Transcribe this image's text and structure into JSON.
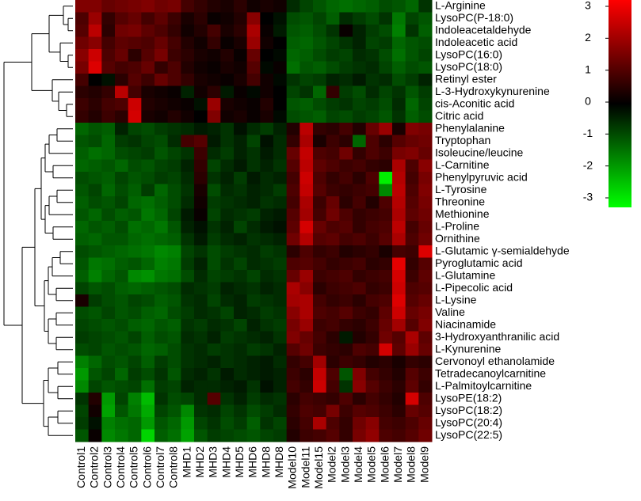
{
  "chart_data": {
    "type": "heatmap",
    "columns": [
      "Control1",
      "Control2",
      "Control3",
      "Control4",
      "Control5",
      "Control6",
      "Control7",
      "Control8",
      "MHD1",
      "MHD2",
      "MHD3",
      "MHD4",
      "MHD5",
      "MHD6",
      "MHD8",
      "MHD8",
      "Model10",
      "Model11",
      "Model15",
      "Model2",
      "Model3",
      "Model4",
      "Model5",
      "Model6",
      "Model7",
      "Model8",
      "Model9"
    ],
    "rows": [
      "L-Arginine",
      "LysoPC(P-18:0)",
      "Indoleacetaldehyde",
      "Indoleacetic acid",
      "LysoPC(16:0)",
      "LysoPC(18:0)",
      "Retinyl ester",
      "L-3-Hydroxykynurenine",
      "cis-Aconitic acid",
      "Citric acid",
      "Phenylalanine",
      "Tryptophan",
      "Isoleucine/leucine",
      "L-Carnitine",
      "Phenylpyruvic acid",
      "L-Tyrosine",
      "Threonine",
      "Methionine",
      "L-Proline",
      "Ornithine",
      "L-Glutamic γ-semialdehyde",
      "Pyroglutamic acid",
      "L-Glutamine",
      "L-Pipecolic acid",
      "L-Lysine",
      "Valine",
      "Niacinamide",
      "3-Hydroxyanthranilic acid",
      "L-Kynurenine",
      "Cervonoyl ethanolamide",
      "Tetradecanoylcarnitine",
      "L-Palmitoylcarnitine",
      "LysoPE(18:2)",
      "LysoPC(18:2)",
      "LysoPC(20:4)",
      "LysoPC(22:5)"
    ],
    "values": [
      [
        1.5,
        1.5,
        1.2,
        1.3,
        1.4,
        1.5,
        1.3,
        1.4,
        0.8,
        0.6,
        0.4,
        0.3,
        0.5,
        0.2,
        0.3,
        0.2,
        -0.5,
        -0.8,
        -1.0,
        -1.2,
        -1.3,
        -1.2,
        -1.1,
        -0.9,
        -1.0,
        -1.2,
        -0.6
      ],
      [
        0.9,
        1.8,
        0.6,
        1.0,
        1.2,
        0.8,
        1.1,
        0.7,
        0.3,
        0.5,
        0.1,
        0.2,
        0.4,
        1.6,
        0.0,
        -0.2,
        -0.9,
        -1.0,
        -0.8,
        -1.1,
        -0.5,
        -0.7,
        -0.9,
        -0.6,
        -1.4,
        -0.8,
        -1.0
      ],
      [
        1.0,
        2.2,
        0.5,
        1.3,
        1.4,
        1.1,
        0.9,
        0.6,
        0.2,
        0.4,
        0.8,
        0.3,
        0.5,
        2.0,
        0.1,
        -0.3,
        -1.0,
        -1.1,
        -0.9,
        -0.6,
        0.1,
        -0.4,
        -0.7,
        -0.9,
        -1.5,
        -0.6,
        -1.1
      ],
      [
        1.3,
        1.6,
        0.8,
        1.1,
        1.0,
        0.9,
        1.2,
        0.8,
        0.4,
        0.2,
        0.6,
        0.1,
        0.3,
        1.8,
        0.2,
        0.0,
        -1.1,
        -1.2,
        -1.0,
        -0.8,
        -0.6,
        -0.4,
        -0.8,
        -0.7,
        -1.2,
        -1.0,
        -0.9
      ],
      [
        1.6,
        2.4,
        0.9,
        1.2,
        0.5,
        1.0,
        1.4,
        0.7,
        0.5,
        0.3,
        0.2,
        0.4,
        0.1,
        1.2,
        0.0,
        -0.1,
        -1.2,
        -1.1,
        -0.9,
        -0.7,
        -0.8,
        -0.5,
        -0.6,
        -0.9,
        -1.3,
        -1.0,
        -0.8
      ],
      [
        1.4,
        2.6,
        1.0,
        0.8,
        0.9,
        1.2,
        0.6,
        0.9,
        0.4,
        0.2,
        0.1,
        0.3,
        0.2,
        1.0,
        -0.1,
        0.1,
        -1.3,
        -1.0,
        -1.1,
        -0.9,
        -0.7,
        -0.6,
        -0.5,
        -0.8,
        -1.1,
        -0.9,
        -1.0
      ],
      [
        0.8,
        0.0,
        -0.2,
        0.5,
        1.0,
        0.7,
        1.2,
        0.9,
        0.6,
        0.3,
        0.2,
        0.1,
        0.3,
        0.8,
        0.2,
        -0.1,
        -0.6,
        -0.8,
        -0.7,
        -0.4,
        -0.5,
        -0.3,
        -0.6,
        -0.5,
        -0.9,
        -0.7,
        -0.4
      ],
      [
        0.5,
        0.4,
        0.6,
        2.2,
        0.8,
        0.3,
        0.2,
        0.1,
        -0.4,
        0.2,
        0.5,
        -0.3,
        0.1,
        -0.1,
        0.2,
        0.0,
        -0.8,
        -0.6,
        -1.2,
        0.6,
        -0.7,
        -0.9,
        -0.5,
        -0.8,
        -0.6,
        -1.0,
        -0.7
      ],
      [
        0.7,
        0.5,
        0.8,
        0.9,
        2.4,
        0.4,
        0.3,
        0.2,
        0.1,
        -0.2,
        1.8,
        0.3,
        0.2,
        0.1,
        0.4,
        0.0,
        -1.0,
        -1.1,
        -0.9,
        -0.7,
        -0.6,
        -0.8,
        -0.7,
        -0.9,
        -0.5,
        -1.2,
        -0.8
      ],
      [
        0.6,
        0.4,
        0.7,
        0.5,
        2.5,
        0.3,
        0.2,
        0.4,
        0.2,
        0.0,
        1.5,
        0.2,
        0.3,
        0.1,
        0.3,
        -0.1,
        -0.9,
        -1.0,
        -1.1,
        -0.8,
        -0.9,
        -0.7,
        -0.8,
        -1.0,
        -0.6,
        -1.1,
        -0.9
      ],
      [
        -1.2,
        -1.0,
        -1.1,
        -0.4,
        -0.8,
        -0.9,
        -0.7,
        -0.6,
        -0.5,
        -0.3,
        -0.4,
        -0.6,
        -0.2,
        -0.5,
        -0.7,
        -0.4,
        0.4,
        2.2,
        0.6,
        0.5,
        0.8,
        0.4,
        1.2,
        1.8,
        0.3,
        1.5,
        1.4
      ],
      [
        -1.0,
        -0.9,
        -1.2,
        -0.7,
        -0.6,
        -0.8,
        -0.9,
        -0.5,
        0.8,
        1.0,
        -0.3,
        -0.6,
        -0.4,
        -0.8,
        -0.2,
        -0.5,
        0.6,
        2.0,
        0.3,
        0.7,
        0.5,
        -1.2,
        0.9,
        0.5,
        1.0,
        1.2,
        1.3
      ],
      [
        -1.1,
        -1.3,
        -1.2,
        -0.9,
        -0.8,
        -0.7,
        -1.0,
        -0.8,
        -0.6,
        0.7,
        -0.5,
        -0.7,
        -0.4,
        -0.6,
        -0.3,
        -0.5,
        1.2,
        2.3,
        0.9,
        0.8,
        1.3,
        0.6,
        0.9,
        0.7,
        1.4,
        1.5,
        1.2
      ],
      [
        -1.2,
        -1.1,
        -1.0,
        -1.2,
        -0.9,
        -1.0,
        -0.8,
        -0.7,
        -0.4,
        0.6,
        -0.8,
        -0.5,
        -0.3,
        -0.6,
        -0.4,
        -0.6,
        1.0,
        2.2,
        1.1,
        0.9,
        0.7,
        0.8,
        0.6,
        0.5,
        2.0,
        0.9,
        1.6
      ],
      [
        -0.9,
        -1.0,
        -1.1,
        -0.8,
        -1.0,
        -0.9,
        -0.7,
        -0.8,
        -0.5,
        0.5,
        -0.6,
        -0.4,
        -0.7,
        -0.3,
        -0.5,
        -0.4,
        0.8,
        2.4,
        0.9,
        0.6,
        0.8,
        0.5,
        0.9,
        -2.8,
        2.1,
        0.8,
        1.4
      ],
      [
        -1.0,
        -0.8,
        -1.2,
        -0.9,
        -1.1,
        -0.7,
        -1.2,
        -0.9,
        -0.6,
        0.3,
        -0.9,
        -0.5,
        -0.6,
        -0.4,
        -0.5,
        -0.7,
        0.9,
        2.3,
        1.0,
        0.7,
        0.6,
        0.7,
        0.8,
        -1.6,
        2.2,
        0.9,
        1.5
      ],
      [
        -1.1,
        -0.9,
        -1.0,
        -0.8,
        -1.2,
        -1.3,
        -1.1,
        -0.9,
        -0.5,
        0.2,
        -0.7,
        -0.6,
        -0.5,
        -0.4,
        -0.6,
        -0.5,
        0.8,
        2.0,
        0.7,
        1.2,
        0.5,
        0.8,
        0.4,
        0.9,
        2.1,
        1.0,
        1.4
      ],
      [
        -1.0,
        -1.2,
        -0.9,
        -1.1,
        -1.0,
        -1.4,
        -1.2,
        -0.8,
        -0.3,
        0.1,
        -0.8,
        -0.5,
        -0.6,
        -0.7,
        -0.4,
        -0.3,
        1.0,
        1.9,
        0.8,
        1.3,
        0.9,
        0.6,
        0.7,
        0.8,
        2.0,
        1.1,
        1.3
      ],
      [
        -1.2,
        -1.0,
        -1.1,
        -0.9,
        -1.3,
        -1.2,
        -1.4,
        -1.0,
        -0.4,
        -0.2,
        -0.6,
        -0.4,
        -0.8,
        -0.5,
        -0.3,
        -0.2,
        1.1,
        2.5,
        1.2,
        0.9,
        1.0,
        0.6,
        0.8,
        0.9,
        2.2,
        0.8,
        1.2
      ],
      [
        -1.1,
        -1.2,
        -1.0,
        -1.0,
        -1.2,
        -1.3,
        -1.2,
        -1.1,
        -0.6,
        -0.3,
        -0.7,
        -0.5,
        -0.4,
        -0.6,
        -0.5,
        -0.4,
        1.3,
        2.1,
        1.0,
        1.1,
        0.8,
        0.9,
        0.7,
        1.0,
        2.0,
        0.9,
        1.3
      ],
      [
        -0.9,
        -1.0,
        -1.1,
        -1.2,
        -1.3,
        -1.4,
        -1.6,
        -1.5,
        -0.8,
        -0.6,
        -0.9,
        -0.7,
        -0.6,
        -0.5,
        -0.7,
        -0.6,
        0.5,
        0.9,
        0.6,
        0.7,
        0.4,
        0.5,
        0.6,
        0.3,
        0.8,
        0.7,
        2.6
      ],
      [
        -1.0,
        -1.4,
        -1.3,
        -1.1,
        -1.0,
        -1.2,
        -1.5,
        -1.4,
        -0.7,
        -0.4,
        -0.9,
        -0.6,
        -0.8,
        -0.5,
        -0.6,
        -0.7,
        0.9,
        1.0,
        0.8,
        0.6,
        0.7,
        0.8,
        0.5,
        0.6,
        2.7,
        0.6,
        1.0
      ],
      [
        -1.1,
        -1.5,
        -1.2,
        -1.0,
        -1.6,
        -1.7,
        -1.4,
        -1.3,
        -0.9,
        -0.5,
        -0.8,
        -0.7,
        -0.6,
        -0.8,
        -0.5,
        -0.6,
        1.2,
        1.8,
        0.7,
        0.8,
        0.9,
        0.6,
        0.7,
        0.8,
        2.5,
        0.7,
        1.1
      ],
      [
        -0.8,
        -1.0,
        -0.9,
        -1.1,
        -1.2,
        -1.1,
        -1.0,
        -0.9,
        -0.5,
        -0.6,
        -0.7,
        -0.4,
        -0.5,
        -0.6,
        -0.4,
        -0.5,
        2.0,
        1.6,
        0.5,
        0.7,
        0.8,
        0.9,
        0.6,
        0.7,
        2.4,
        0.9,
        1.0
      ],
      [
        0.3,
        -0.7,
        -0.9,
        -1.0,
        -0.8,
        -0.9,
        -1.1,
        -1.0,
        -0.6,
        -0.5,
        -0.8,
        -0.5,
        -0.4,
        -0.7,
        -0.6,
        -0.5,
        1.9,
        2.0,
        0.8,
        0.6,
        0.7,
        0.5,
        0.8,
        0.9,
        2.6,
        1.0,
        1.2
      ],
      [
        -0.9,
        -1.0,
        -0.8,
        -1.0,
        -0.9,
        -1.1,
        -1.2,
        -0.9,
        -0.7,
        -0.5,
        -0.6,
        -0.8,
        -0.4,
        -0.5,
        -0.7,
        -0.6,
        1.6,
        2.0,
        0.9,
        0.8,
        1.0,
        0.7,
        0.6,
        1.1,
        2.4,
        1.2,
        1.4
      ],
      [
        -0.8,
        -0.9,
        -1.0,
        -0.9,
        -1.1,
        -1.2,
        -1.0,
        -1.1,
        -0.6,
        -0.7,
        -0.5,
        -0.6,
        -0.8,
        -0.4,
        -0.6,
        -0.7,
        1.4,
        1.8,
        0.7,
        0.8,
        0.6,
        0.5,
        0.7,
        1.2,
        1.9,
        1.0,
        1.5
      ],
      [
        -0.7,
        -0.8,
        -0.9,
        -1.0,
        -0.8,
        -1.1,
        -0.9,
        -1.0,
        -0.5,
        -0.6,
        -0.4,
        -0.7,
        -0.6,
        -0.5,
        -0.4,
        -0.6,
        1.5,
        1.2,
        0.8,
        0.5,
        -0.3,
        0.4,
        0.6,
        1.3,
        1.0,
        2.0,
        1.1
      ],
      [
        -0.9,
        -0.8,
        -1.0,
        -0.9,
        -1.0,
        -1.2,
        -1.1,
        -0.9,
        -0.6,
        -0.5,
        -0.7,
        -0.6,
        -0.5,
        -0.7,
        -0.6,
        -0.4,
        1.0,
        1.3,
        0.7,
        0.6,
        0.5,
        0.9,
        0.8,
        2.5,
        1.1,
        1.8,
        1.2
      ],
      [
        -1.5,
        -1.2,
        -0.9,
        -1.0,
        -0.8,
        -1.1,
        -0.7,
        -0.9,
        -0.6,
        -0.5,
        -0.4,
        -0.6,
        -0.5,
        -0.4,
        -0.3,
        -0.5,
        0.6,
        0.8,
        1.9,
        0.5,
        0.7,
        0.6,
        0.4,
        0.5,
        0.3,
        0.6,
        0.5
      ],
      [
        -1.8,
        -1.0,
        -0.8,
        -1.2,
        -0.7,
        -0.9,
        -0.6,
        -1.0,
        -0.5,
        -0.4,
        -0.6,
        -0.3,
        -0.5,
        -0.4,
        -0.3,
        -0.4,
        0.7,
        0.5,
        2.3,
        0.9,
        -1.0,
        1.5,
        0.8,
        0.6,
        0.4,
        1.0,
        0.7
      ],
      [
        -1.6,
        -0.8,
        -1.0,
        -0.9,
        -0.8,
        -1.3,
        -0.7,
        -0.8,
        -0.4,
        -0.5,
        -0.5,
        -0.4,
        -0.3,
        -0.6,
        -0.2,
        -0.4,
        0.8,
        0.6,
        2.4,
        0.8,
        -0.6,
        1.6,
        1.0,
        0.7,
        0.5,
        1.1,
        0.6
      ],
      [
        -0.6,
        0.4,
        -1.8,
        -0.8,
        -1.5,
        -2.2,
        -0.6,
        -0.9,
        -0.8,
        -0.5,
        1.0,
        -0.6,
        -0.4,
        -0.7,
        -0.5,
        -0.6,
        0.5,
        0.8,
        0.7,
        0.6,
        0.9,
        0.5,
        0.8,
        0.6,
        0.4,
        2.5,
        0.9
      ],
      [
        -0.8,
        0.2,
        -1.9,
        -1.0,
        -1.4,
        -2.0,
        -0.8,
        -1.0,
        -1.6,
        -0.6,
        -0.5,
        -0.8,
        -0.6,
        -0.9,
        -0.7,
        -0.5,
        0.6,
        0.9,
        0.8,
        1.4,
        0.7,
        1.0,
        0.9,
        0.7,
        0.5,
        1.2,
        1.0
      ],
      [
        -0.7,
        -0.2,
        -1.5,
        -1.3,
        -1.2,
        -1.8,
        -1.0,
        -1.2,
        -1.8,
        -0.8,
        -0.6,
        -0.9,
        -0.7,
        -1.1,
        -0.6,
        -0.8,
        0.5,
        0.8,
        2.0,
        0.9,
        0.6,
        1.3,
        1.6,
        0.8,
        0.7,
        0.9,
        1.2
      ],
      [
        -1.0,
        0.1,
        -1.6,
        -1.4,
        -1.2,
        -2.5,
        -1.1,
        -1.3,
        -1.9,
        -1.0,
        -0.7,
        -0.8,
        -0.9,
        -1.0,
        -0.8,
        -0.7,
        0.4,
        0.7,
        0.8,
        1.0,
        0.6,
        1.4,
        1.7,
        0.9,
        0.8,
        1.0,
        1.3
      ]
    ],
    "colors": [
      "#00ff00",
      "#000000",
      "#ff0000"
    ],
    "zlim": [
      -3,
      3
    ],
    "zticks": [
      3,
      2,
      1,
      0,
      -1,
      -2,
      -3
    ]
  }
}
